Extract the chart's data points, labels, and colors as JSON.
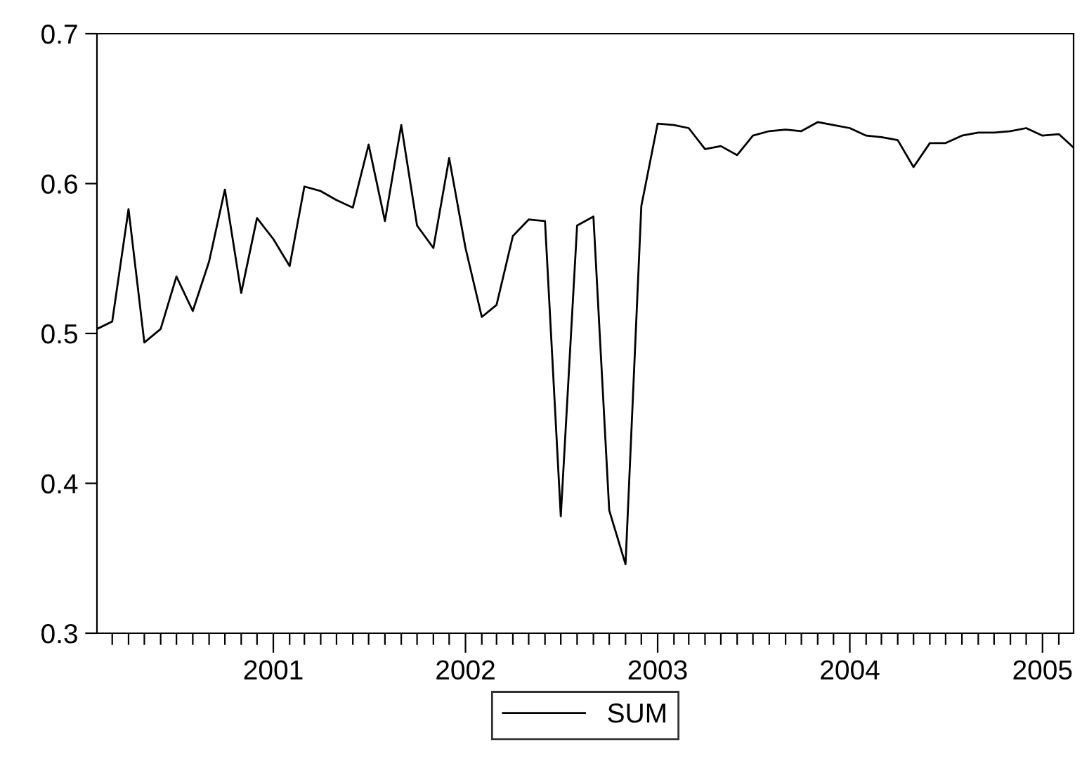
{
  "chart_data": {
    "type": "line",
    "x": [
      "2000-02",
      "2000-03",
      "2000-04",
      "2000-05",
      "2000-06",
      "2000-07",
      "2000-08",
      "2000-09",
      "2000-10",
      "2000-11",
      "2000-12",
      "2001-01",
      "2001-02",
      "2001-03",
      "2001-04",
      "2001-05",
      "2001-06",
      "2001-07",
      "2001-08",
      "2001-09",
      "2001-10",
      "2001-11",
      "2001-12",
      "2002-01",
      "2002-02",
      "2002-03",
      "2002-04",
      "2002-05",
      "2002-06",
      "2002-07",
      "2002-08",
      "2002-09",
      "2002-10",
      "2002-11",
      "2002-12",
      "2003-01",
      "2003-02",
      "2003-03",
      "2003-04",
      "2003-05",
      "2003-06",
      "2003-07",
      "2003-08",
      "2003-09",
      "2003-10",
      "2003-11",
      "2003-12",
      "2004-01",
      "2004-02",
      "2004-03",
      "2004-04",
      "2004-05",
      "2004-06",
      "2004-07",
      "2004-08",
      "2004-09",
      "2004-10",
      "2004-11",
      "2004-12",
      "2005-01",
      "2005-02",
      "2005-03"
    ],
    "series": [
      {
        "name": "SUM",
        "color": "#000000",
        "values": [
          0.503,
          0.508,
          0.583,
          0.494,
          0.503,
          0.538,
          0.515,
          0.548,
          0.596,
          0.527,
          0.577,
          0.563,
          0.545,
          0.598,
          0.595,
          0.589,
          0.584,
          0.626,
          0.575,
          0.639,
          0.572,
          0.557,
          0.617,
          0.557,
          0.511,
          0.519,
          0.565,
          0.576,
          0.575,
          0.378,
          0.572,
          0.578,
          0.382,
          0.346,
          0.585,
          0.64,
          0.639,
          0.637,
          0.623,
          0.625,
          0.619,
          0.632,
          0.635,
          0.636,
          0.635,
          0.641,
          0.639,
          0.637,
          0.632,
          0.631,
          0.629,
          0.611,
          0.627,
          0.627,
          0.632,
          0.634,
          0.634,
          0.635,
          0.637,
          0.632,
          0.633,
          0.624
        ]
      }
    ],
    "xlim": [
      "2000-02",
      "2005-03"
    ],
    "xticks": [
      {
        "value": "2000-03",
        "label": null
      },
      {
        "value": "2000-04",
        "label": null
      },
      {
        "value": "2000-05",
        "label": null
      },
      {
        "value": "2000-06",
        "label": null
      },
      {
        "value": "2000-07",
        "label": null
      },
      {
        "value": "2000-08",
        "label": null
      },
      {
        "value": "2000-09",
        "label": null
      },
      {
        "value": "2000-10",
        "label": null
      },
      {
        "value": "2000-11",
        "label": null
      },
      {
        "value": "2000-12",
        "label": null
      },
      {
        "value": "2001-01",
        "label": "2001"
      },
      {
        "value": "2001-02",
        "label": null
      },
      {
        "value": "2001-03",
        "label": null
      },
      {
        "value": "2001-04",
        "label": null
      },
      {
        "value": "2001-05",
        "label": null
      },
      {
        "value": "2001-06",
        "label": null
      },
      {
        "value": "2001-07",
        "label": null
      },
      {
        "value": "2001-08",
        "label": null
      },
      {
        "value": "2001-09",
        "label": null
      },
      {
        "value": "2001-10",
        "label": null
      },
      {
        "value": "2001-11",
        "label": null
      },
      {
        "value": "2001-12",
        "label": null
      },
      {
        "value": "2002-01",
        "label": "2002"
      },
      {
        "value": "2002-02",
        "label": null
      },
      {
        "value": "2002-03",
        "label": null
      },
      {
        "value": "2002-04",
        "label": null
      },
      {
        "value": "2002-05",
        "label": null
      },
      {
        "value": "2002-06",
        "label": null
      },
      {
        "value": "2002-07",
        "label": null
      },
      {
        "value": "2002-08",
        "label": null
      },
      {
        "value": "2002-09",
        "label": null
      },
      {
        "value": "2002-10",
        "label": null
      },
      {
        "value": "2002-11",
        "label": null
      },
      {
        "value": "2002-12",
        "label": null
      },
      {
        "value": "2003-01",
        "label": "2003"
      },
      {
        "value": "2003-02",
        "label": null
      },
      {
        "value": "2003-03",
        "label": null
      },
      {
        "value": "2003-04",
        "label": null
      },
      {
        "value": "2003-05",
        "label": null
      },
      {
        "value": "2003-06",
        "label": null
      },
      {
        "value": "2003-07",
        "label": null
      },
      {
        "value": "2003-08",
        "label": null
      },
      {
        "value": "2003-09",
        "label": null
      },
      {
        "value": "2003-10",
        "label": null
      },
      {
        "value": "2003-11",
        "label": null
      },
      {
        "value": "2003-12",
        "label": null
      },
      {
        "value": "2004-01",
        "label": "2004"
      },
      {
        "value": "2004-02",
        "label": null
      },
      {
        "value": "2004-03",
        "label": null
      },
      {
        "value": "2004-04",
        "label": null
      },
      {
        "value": "2004-05",
        "label": null
      },
      {
        "value": "2004-06",
        "label": null
      },
      {
        "value": "2004-07",
        "label": null
      },
      {
        "value": "2004-08",
        "label": null
      },
      {
        "value": "2004-09",
        "label": null
      },
      {
        "value": "2004-10",
        "label": null
      },
      {
        "value": "2004-11",
        "label": null
      },
      {
        "value": "2004-12",
        "label": null
      },
      {
        "value": "2005-01",
        "label": "2005"
      },
      {
        "value": "2005-02",
        "label": null
      }
    ],
    "ylim": [
      0.3,
      0.7
    ],
    "yticks": [
      {
        "value": 0.3,
        "label": "0.3"
      },
      {
        "value": 0.4,
        "label": "0.4"
      },
      {
        "value": 0.5,
        "label": "0.5"
      },
      {
        "value": 0.6,
        "label": "0.6"
      },
      {
        "value": 0.7,
        "label": "0.7"
      }
    ],
    "legend": "bottom",
    "grid": false,
    "marker": "none",
    "line_style": "solid"
  }
}
